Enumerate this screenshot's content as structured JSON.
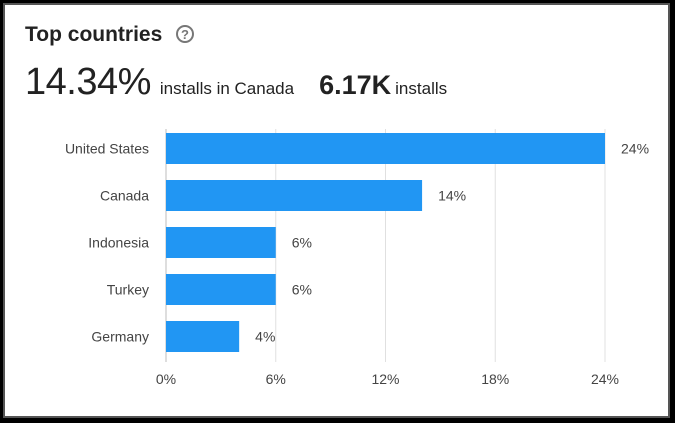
{
  "header": {
    "title": "Top countries",
    "help_icon": "help-circle-icon",
    "primary_value": "14.34%",
    "primary_label": "installs in Canada",
    "secondary_value": "6.17K",
    "secondary_label": "installs"
  },
  "colors": {
    "bar": "#2196f3",
    "grid": "#e0e0e0",
    "text": "#444444"
  },
  "chart_data": {
    "type": "bar",
    "orientation": "horizontal",
    "categories": [
      "United States",
      "Canada",
      "Indonesia",
      "Turkey",
      "Germany"
    ],
    "values": [
      24,
      14,
      6,
      6,
      4
    ],
    "data_labels": [
      "24%",
      "14%",
      "6%",
      "6%",
      "4%"
    ],
    "xticks": [
      0,
      6,
      12,
      18,
      24
    ],
    "xtick_labels": [
      "0%",
      "6%",
      "12%",
      "18%",
      "24%"
    ],
    "xlim": [
      0,
      24
    ],
    "grid": true
  }
}
